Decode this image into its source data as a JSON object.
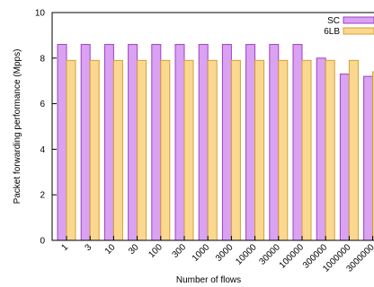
{
  "chart_data": {
    "type": "bar",
    "xlabel": "Number of flows",
    "ylabel": "Packet forwarding performance (Mpps)",
    "ylim": [
      0,
      10
    ],
    "yticks": [
      0,
      2,
      4,
      6,
      8,
      10
    ],
    "categories": [
      "1",
      "3",
      "10",
      "30",
      "100",
      "300",
      "1000",
      "3000",
      "10000",
      "30000",
      "100000",
      "300000",
      "1000000",
      "3000000"
    ],
    "series": [
      {
        "name": "SC",
        "color": "#d9a2f2",
        "stroke": "#a040c0",
        "values": [
          8.6,
          8.6,
          8.6,
          8.6,
          8.6,
          8.6,
          8.6,
          8.6,
          8.6,
          8.6,
          8.6,
          8.0,
          7.3,
          7.2
        ]
      },
      {
        "name": "6LB",
        "color": "#fbd890",
        "stroke": "#d4a030",
        "values": [
          7.9,
          7.9,
          7.9,
          7.9,
          7.9,
          7.9,
          7.9,
          7.9,
          7.9,
          7.9,
          7.9,
          7.9,
          7.9,
          7.4
        ]
      }
    ],
    "legend_position": "top-right",
    "grid": false
  }
}
